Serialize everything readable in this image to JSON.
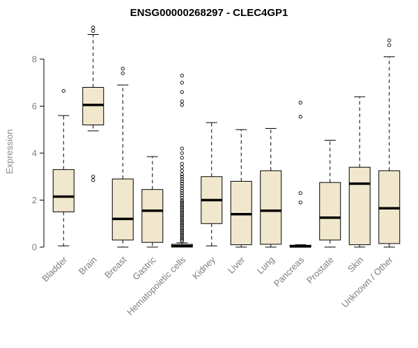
{
  "page": {
    "background": "#ffffff"
  },
  "chart_data": {
    "type": "boxplot",
    "title": "ENSG00000268297 - CLEC4GP1",
    "xlabel": "",
    "ylabel": "Expression",
    "ylim": [
      0,
      9.4
    ],
    "yticks": [
      0,
      2,
      4,
      6,
      8
    ],
    "grid": false,
    "box_fill": "#f0e7cc",
    "box_stroke": "#000000",
    "median_color": "#000000",
    "axis_color": "#000000",
    "label_color": "#7e7e7e",
    "categories": [
      "Bladder",
      "Brain",
      "Breast",
      "Gastric",
      "Hematopoietic cells",
      "Kidney",
      "Liver",
      "Lung",
      "Pancreas",
      "Prostate",
      "Skin",
      "Unknown / Other"
    ],
    "boxes": [
      {
        "label": "Bladder",
        "q1": 1.5,
        "median": 2.15,
        "q3": 3.3,
        "whisker_low": 0.05,
        "whisker_high": 5.6,
        "outliers": [
          6.65
        ]
      },
      {
        "label": "Brain",
        "q1": 5.2,
        "median": 6.05,
        "q3": 6.8,
        "whisker_low": 4.95,
        "whisker_high": 9.05,
        "outliers": [
          2.85,
          3.0,
          9.2,
          9.35
        ]
      },
      {
        "label": "Breast",
        "q1": 0.3,
        "median": 1.2,
        "q3": 2.9,
        "whisker_low": 0,
        "whisker_high": 6.9,
        "outliers": [
          7.4,
          7.6
        ]
      },
      {
        "label": "Gastric",
        "q1": 0.2,
        "median": 1.55,
        "q3": 2.45,
        "whisker_low": 0,
        "whisker_high": 3.85,
        "outliers": []
      },
      {
        "label": "Hematopoietic cells",
        "q1": 0,
        "median": 0.04,
        "q3": 0.12,
        "whisker_low": 0,
        "whisker_high": 0.18,
        "outliers": [
          0.25,
          0.32,
          0.39,
          0.46,
          0.53,
          0.6,
          0.67,
          0.74,
          0.81,
          0.88,
          0.95,
          1.02,
          1.09,
          1.16,
          1.23,
          1.3,
          1.37,
          1.44,
          1.51,
          1.58,
          1.65,
          1.72,
          1.79,
          1.86,
          1.93,
          2.0,
          2.1,
          2.2,
          2.3,
          2.4,
          2.5,
          2.6,
          2.7,
          2.8,
          2.9,
          3.0,
          3.1,
          3.25,
          3.4,
          3.55,
          3.8,
          4.0,
          4.2,
          6.05,
          6.2,
          6.6,
          7.0,
          7.3
        ]
      },
      {
        "label": "Kidney",
        "q1": 1.0,
        "median": 2.0,
        "q3": 3.0,
        "whisker_low": 0.05,
        "whisker_high": 5.3,
        "outliers": []
      },
      {
        "label": "Liver",
        "q1": 0.1,
        "median": 1.4,
        "q3": 2.8,
        "whisker_low": 0,
        "whisker_high": 5.0,
        "outliers": []
      },
      {
        "label": "Lung",
        "q1": 0.12,
        "median": 1.55,
        "q3": 3.25,
        "whisker_low": 0,
        "whisker_high": 5.05,
        "outliers": []
      },
      {
        "label": "Pancreas",
        "q1": 0,
        "median": 0.03,
        "q3": 0.08,
        "whisker_low": 0,
        "whisker_high": 0.1,
        "outliers": [
          1.9,
          2.3,
          5.55,
          6.15
        ]
      },
      {
        "label": "Prostate",
        "q1": 0.3,
        "median": 1.25,
        "q3": 2.75,
        "whisker_low": 0,
        "whisker_high": 4.55,
        "outliers": []
      },
      {
        "label": "Skin",
        "q1": 0.1,
        "median": 2.7,
        "q3": 3.4,
        "whisker_low": 0,
        "whisker_high": 6.4,
        "outliers": []
      },
      {
        "label": "Unknown / Other",
        "q1": 0.15,
        "median": 1.65,
        "q3": 3.25,
        "whisker_low": 0,
        "whisker_high": 8.1,
        "outliers": [
          8.6,
          8.8
        ]
      }
    ]
  }
}
